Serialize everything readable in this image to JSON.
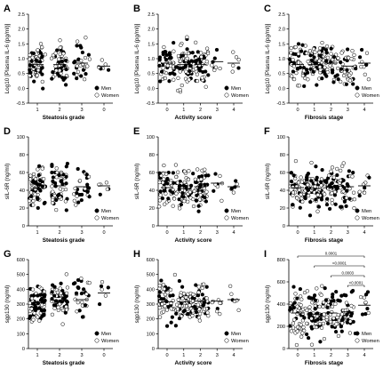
{
  "panels": [
    {
      "label": "A",
      "ylabel": "Log10 [Plasma IL-6 (pg/ml)]",
      "xlabel": "Steatosis grade",
      "categories": [
        "1",
        "2",
        "3",
        "0"
      ],
      "ylim": [
        -0.5,
        2.5
      ],
      "yticks": [
        "-0.5",
        "0.0",
        "0.5",
        "1.0",
        "1.5",
        "2.0",
        "2.5"
      ]
    },
    {
      "label": "B",
      "ylabel": "Log10 [Plasma IL-6 (pg/ml)]",
      "xlabel": "Activity score",
      "categories": [
        "0",
        "1",
        "2",
        "3",
        "4"
      ],
      "ylim": [
        -0.5,
        2.5
      ],
      "yticks": [
        "-0.5",
        "0.0",
        "0.5",
        "1.0",
        "1.5",
        "2.0",
        "2.5"
      ]
    },
    {
      "label": "C",
      "ylabel": "Log10 [Plasma IL-6 (pg/ml)]",
      "xlabel": "Fibrosis stage",
      "categories": [
        "0",
        "1",
        "2",
        "3",
        "4"
      ],
      "ylim": [
        -0.5,
        2.5
      ],
      "yticks": [
        "-0.5",
        "0.0",
        "0.5",
        "1.0",
        "1.5",
        "2.0",
        "2.5"
      ]
    },
    {
      "label": "D",
      "ylabel": "sIL-6R (ng/ml)",
      "xlabel": "Steatosis grade",
      "categories": [
        "1",
        "2",
        "3",
        "0"
      ],
      "ylim": [
        0,
        100
      ],
      "yticks": [
        "0",
        "20",
        "40",
        "60",
        "80",
        "100"
      ]
    },
    {
      "label": "E",
      "ylabel": "sIL-6R (ng/ml)",
      "xlabel": "Activity score",
      "categories": [
        "0",
        "1",
        "2",
        "3",
        "4"
      ],
      "ylim": [
        0,
        100
      ],
      "yticks": [
        "0",
        "20",
        "40",
        "60",
        "80",
        "100"
      ]
    },
    {
      "label": "F",
      "ylabel": "sIL-6R (ng/ml)",
      "xlabel": "Fibrosis stage",
      "categories": [
        "0",
        "1",
        "2",
        "3",
        "4"
      ],
      "ylim": [
        0,
        100
      ],
      "yticks": [
        "0",
        "20",
        "40",
        "60",
        "80",
        "100"
      ]
    },
    {
      "label": "G",
      "ylabel": "sgp130 (ng/ml)",
      "xlabel": "Steatosis grade",
      "categories": [
        "1",
        "2",
        "3",
        "0"
      ],
      "ylim": [
        0,
        600
      ],
      "yticks": [
        "0",
        "100",
        "200",
        "300",
        "400",
        "500",
        "600"
      ]
    },
    {
      "label": "H",
      "ylabel": "sgp130 (ng/ml)",
      "xlabel": "Activity score",
      "categories": [
        "0",
        "1",
        "2",
        "3",
        "4"
      ],
      "ylim": [
        0,
        600
      ],
      "yticks": [
        "0",
        "100",
        "200",
        "300",
        "400",
        "500",
        "600"
      ]
    },
    {
      "label": "I",
      "ylabel": "sgp130 (ng/ml)",
      "xlabel": "Fibrosis stage",
      "categories": [
        "0",
        "1",
        "2",
        "3",
        "4"
      ],
      "ylim": [
        0,
        800
      ],
      "yticks": [
        "0",
        "200",
        "400",
        "600",
        "800"
      ]
    }
  ],
  "legend": {
    "men": "Men",
    "women": "Women"
  },
  "colors": {
    "men": "#000000",
    "women": "#ffffff",
    "stroke": "#000000"
  },
  "chart_data": [
    {
      "panel": "A",
      "type": "scatter",
      "categories": [
        "1",
        "2",
        "3",
        "0"
      ],
      "medians": [
        0.8,
        0.8,
        0.85,
        0.75
      ],
      "ylim": [
        -0.5,
        2.5
      ]
    },
    {
      "panel": "B",
      "type": "scatter",
      "categories": [
        "0",
        "1",
        "2",
        "3",
        "4"
      ],
      "medians": [
        0.85,
        0.8,
        0.8,
        0.9,
        0.85
      ],
      "ylim": [
        -0.5,
        2.5
      ]
    },
    {
      "panel": "C",
      "type": "scatter",
      "categories": [
        "0",
        "1",
        "2",
        "3",
        "4"
      ],
      "medians": [
        0.8,
        0.8,
        0.85,
        0.75,
        0.85
      ],
      "ylim": [
        -0.5,
        2.5
      ]
    },
    {
      "panel": "D",
      "type": "scatter",
      "categories": [
        "1",
        "2",
        "3",
        "0"
      ],
      "medians": [
        42,
        45,
        44,
        45
      ],
      "ylim": [
        0,
        100
      ]
    },
    {
      "panel": "E",
      "type": "scatter",
      "categories": [
        "0",
        "1",
        "2",
        "3",
        "4"
      ],
      "medians": [
        43,
        42,
        44,
        48,
        44
      ],
      "ylim": [
        0,
        100
      ]
    },
    {
      "panel": "F",
      "type": "scatter",
      "categories": [
        "0",
        "1",
        "2",
        "3",
        "4"
      ],
      "medians": [
        43,
        42,
        44,
        44,
        45
      ],
      "ylim": [
        0,
        100
      ]
    },
    {
      "panel": "G",
      "type": "scatter",
      "categories": [
        "1",
        "2",
        "3",
        "0"
      ],
      "medians": [
        310,
        325,
        330,
        375
      ],
      "ylim": [
        0,
        600
      ]
    },
    {
      "panel": "H",
      "type": "scatter",
      "categories": [
        "0",
        "1",
        "2",
        "3",
        "4"
      ],
      "medians": [
        315,
        315,
        320,
        320,
        330
      ],
      "ylim": [
        0,
        600
      ]
    },
    {
      "panel": "I",
      "type": "scatter",
      "categories": [
        "0",
        "1",
        "2",
        "3",
        "4"
      ],
      "medians": [
        320,
        310,
        320,
        330,
        390
      ],
      "ylim": [
        0,
        800
      ],
      "comparisons": [
        {
          "from": "0",
          "to": "4",
          "p": "0.0001"
        },
        {
          "from": "1",
          "to": "4",
          "p": "<0.0001"
        },
        {
          "from": "2",
          "to": "4",
          "p": "0.0003"
        },
        {
          "from": "3",
          "to": "4",
          "p": "<0.0001"
        }
      ]
    }
  ]
}
